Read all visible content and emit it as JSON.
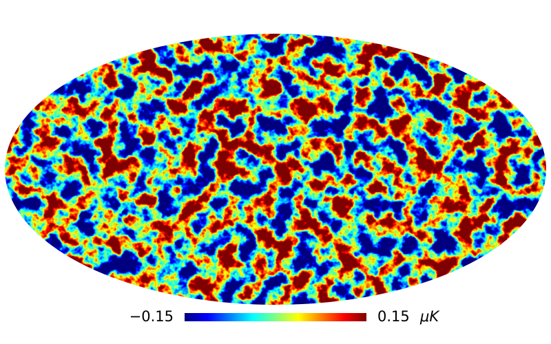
{
  "chart_data": {
    "type": "map",
    "projection": "mollweide",
    "colorbar": {
      "lim": [
        -0.15,
        0.15
      ],
      "ticks": [
        {
          "value": -0.15,
          "label": "−0.15"
        },
        0.15
      ],
      "unit": "μK",
      "colormap": [
        "#00007f",
        "#0000ff",
        "#007fff",
        "#00ffff",
        "#7fff7f",
        "#ffff00",
        "#ff7f00",
        "#ff0000",
        "#7f0000"
      ]
    }
  }
}
